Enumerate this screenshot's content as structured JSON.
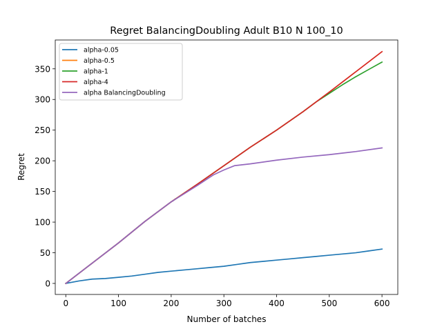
{
  "chart_data": {
    "type": "line",
    "title": "Regret BalancingDoubling Adult B10 N 100_10",
    "xlabel": "Number of batches",
    "ylabel": "Regret",
    "xlim": [
      -20,
      630
    ],
    "ylim": [
      -18,
      397
    ],
    "xticks": [
      0,
      100,
      200,
      300,
      400,
      500,
      600
    ],
    "yticks": [
      0,
      50,
      100,
      150,
      200,
      250,
      300,
      350
    ],
    "grid": false,
    "legend_position": "top-left",
    "series": [
      {
        "name": "alpha-0.05",
        "color": "#1f77b4",
        "x": [
          0,
          25,
          50,
          75,
          100,
          125,
          150,
          175,
          200,
          225,
          250,
          275,
          300,
          325,
          350,
          375,
          400,
          425,
          450,
          475,
          500,
          525,
          550,
          575,
          600
        ],
        "y": [
          0,
          4,
          7,
          8,
          10,
          12,
          15,
          18,
          20,
          22,
          24,
          26,
          28,
          31,
          34,
          36,
          38,
          40,
          42,
          44,
          46,
          48,
          50,
          53,
          56
        ]
      },
      {
        "name": "alpha-0.5",
        "color": "#ff7f0e",
        "x": [
          0,
          50,
          100,
          150,
          200,
          250,
          300,
          350,
          400,
          450,
          500,
          550,
          600
        ],
        "y": [
          0,
          33,
          66,
          101,
          133,
          162,
          192,
          222,
          250,
          280,
          312,
          345,
          378
        ]
      },
      {
        "name": "alpha-1",
        "color": "#2ca02c",
        "x": [
          0,
          50,
          100,
          150,
          200,
          250,
          300,
          350,
          400,
          450,
          475,
          500,
          525,
          550,
          575,
          600
        ],
        "y": [
          0,
          33,
          66,
          101,
          133,
          162,
          192,
          222,
          250,
          280,
          296,
          310,
          324,
          337,
          349,
          361
        ]
      },
      {
        "name": "alpha-4",
        "color": "#d62728",
        "x": [
          0,
          50,
          100,
          150,
          200,
          250,
          300,
          350,
          400,
          450,
          500,
          550,
          600
        ],
        "y": [
          0,
          33,
          66,
          101,
          133,
          162,
          192,
          222,
          250,
          280,
          312,
          345,
          378
        ]
      },
      {
        "name": "alpha BalancingDoubling",
        "color": "#9467bd",
        "x": [
          0,
          50,
          100,
          150,
          200,
          250,
          280,
          300,
          320,
          350,
          400,
          450,
          500,
          550,
          600
        ],
        "y": [
          0,
          33,
          66,
          101,
          133,
          160,
          177,
          185,
          192,
          195,
          201,
          206,
          210,
          215,
          221
        ]
      }
    ]
  }
}
